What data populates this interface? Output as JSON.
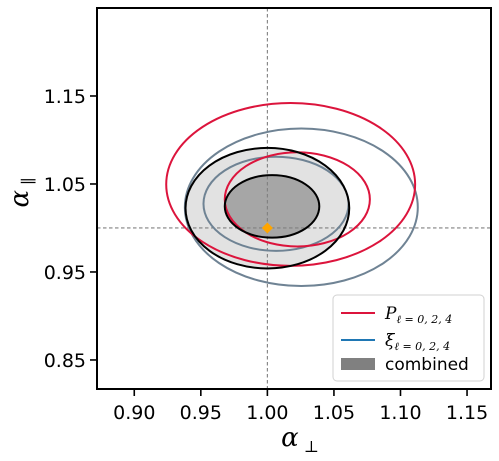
{
  "chart_data": {
    "type": "contour",
    "xlabel": "α",
    "xlabel_sub": "⊥",
    "ylabel": "α",
    "ylabel_sub": "∥",
    "xlim": [
      0.872,
      1.168
    ],
    "ylim": [
      0.817,
      1.25
    ],
    "xticks": [
      0.9,
      0.95,
      1.0,
      1.05,
      1.1,
      1.15
    ],
    "xtick_labels": [
      "0.90",
      "0.95",
      "1.00",
      "1.05",
      "1.10",
      "1.15"
    ],
    "yticks": [
      0.85,
      0.95,
      1.05,
      1.15
    ],
    "ytick_labels": [
      "0.85",
      "0.95",
      "1.05",
      "1.15"
    ],
    "reference_lines": {
      "x": 1.0,
      "y": 1.0
    },
    "fiducial_point": {
      "x": 1.0,
      "y": 1.0,
      "color": "#ffa500"
    },
    "series": [
      {
        "name": "P",
        "name_sub": "ℓ = 0, 2, 4",
        "color": "#dc143c",
        "contours": [
          {
            "level": "1-sigma",
            "cx": 1.0225,
            "cy": 1.0325,
            "rx": 0.0545,
            "ry": 0.0535
          },
          {
            "level": "2-sigma",
            "cx": 1.0175,
            "cy": 1.0495,
            "rx": 0.0935,
            "ry": 0.0925
          }
        ]
      },
      {
        "name": "ξ",
        "name_sub": "ℓ = 0, 2, 4",
        "color": "#6f8394",
        "legend_color": "#1f77b4",
        "contours": [
          {
            "level": "1-sigma",
            "cx": 1.0065,
            "cy": 1.0275,
            "rx": 0.0545,
            "ry": 0.0535
          },
          {
            "level": "2-sigma",
            "cx": 1.0255,
            "cy": 1.0235,
            "rx": 0.0875,
            "ry": 0.0895
          }
        ]
      },
      {
        "name": "combined",
        "color": "#000000",
        "fill_outer": "#e2e2e2",
        "fill_inner": "#a6a6a6",
        "legend_color": "#808080",
        "contours": [
          {
            "level": "1-sigma",
            "cx": 1.0035,
            "cy": 1.0245,
            "rx": 0.0355,
            "ry": 0.0355
          },
          {
            "level": "2-sigma",
            "cx": 1.0,
            "cy": 1.0225,
            "rx": 0.0615,
            "ry": 0.0685
          }
        ]
      }
    ],
    "legend_placement": "lower-right"
  }
}
